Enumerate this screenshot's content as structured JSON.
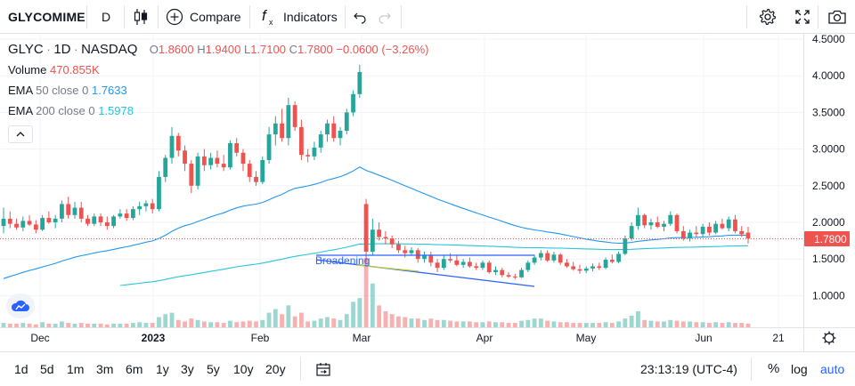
{
  "toolbar": {
    "symbol": "GLYCOMIME",
    "interval": "D",
    "compare_label": "Compare",
    "indicators_label": "Indicators"
  },
  "legend": {
    "symbol": "GLYC",
    "interval": "1D",
    "exchange": "NASDAQ",
    "o_label": "O",
    "o_value": "1.8600",
    "h_label": "H",
    "h_value": "1.9400",
    "l_label": "L",
    "l_value": "1.7100",
    "c_label": "C",
    "c_value": "1.7800",
    "change": "−0.0600 (−3.26%)",
    "volume_label": "Volume",
    "volume_value": "470.855K",
    "ema50_label": "EMA",
    "ema50_params": "50 close 0",
    "ema50_value": "1.7633",
    "ema200_label": "EMA",
    "ema200_params": "200 close 0",
    "ema200_value": "1.5978"
  },
  "drawing_label": "Broadening",
  "bottom": {
    "ranges": [
      "1d",
      "5d",
      "1m",
      "3m",
      "6m",
      "1y",
      "3y",
      "5y",
      "10y",
      "20y"
    ],
    "time": "23:13:19 (UTC-4)",
    "percent_label": "%",
    "log_label": "log",
    "auto_label": "auto"
  },
  "colors": {
    "up": "#26a69a",
    "down": "#ef5350",
    "ema50": "#2196f3",
    "ema200": "#26c6da",
    "accent": "#2962ff"
  },
  "chart_data": {
    "type": "candlestick",
    "price_ticks": [
      "4.5000",
      "4.0000",
      "3.5000",
      "3.0000",
      "2.5000",
      "2.0000",
      "1.5000",
      "1.0000"
    ],
    "ylim": [
      0.6,
      4.55
    ],
    "time_ticks": [
      "Dec",
      "2023",
      "Feb",
      "Mar",
      "Apr",
      "May",
      "Jun",
      "21"
    ],
    "last_price_label": "1.7800",
    "candles": [
      [
        1.95,
        2.2,
        1.85,
        2.05
      ],
      [
        2.05,
        2.15,
        1.92,
        1.98
      ],
      [
        1.98,
        2.05,
        1.9,
        1.93
      ],
      [
        1.93,
        2.08,
        1.88,
        2.02
      ],
      [
        2.02,
        2.1,
        1.95,
        1.97
      ],
      [
        1.97,
        2.03,
        1.85,
        1.9
      ],
      [
        1.9,
        2.1,
        1.88,
        2.06
      ],
      [
        2.06,
        2.15,
        1.98,
        2.0
      ],
      [
        2.0,
        2.1,
        1.92,
        2.05
      ],
      [
        2.05,
        2.3,
        2.0,
        2.25
      ],
      [
        2.25,
        2.35,
        2.05,
        2.1
      ],
      [
        2.1,
        2.28,
        2.05,
        2.2
      ],
      [
        2.2,
        2.28,
        2.0,
        2.05
      ],
      [
        2.05,
        2.1,
        1.95,
        1.98
      ],
      [
        1.98,
        2.12,
        1.95,
        2.08
      ],
      [
        2.08,
        2.12,
        1.95,
        2.0
      ],
      [
        2.0,
        2.08,
        1.9,
        1.95
      ],
      [
        1.95,
        2.1,
        1.92,
        2.08
      ],
      [
        2.08,
        2.18,
        2.05,
        2.12
      ],
      [
        2.12,
        2.18,
        2.02,
        2.06
      ],
      [
        2.06,
        2.22,
        2.03,
        2.18
      ],
      [
        2.18,
        2.28,
        2.1,
        2.22
      ],
      [
        2.22,
        2.3,
        2.15,
        2.26
      ],
      [
        2.26,
        2.32,
        2.12,
        2.18
      ],
      [
        2.18,
        2.7,
        2.15,
        2.62
      ],
      [
        2.62,
        2.92,
        2.55,
        2.88
      ],
      [
        2.88,
        3.3,
        2.8,
        3.18
      ],
      [
        3.18,
        3.22,
        2.9,
        2.98
      ],
      [
        2.98,
        3.05,
        2.7,
        2.8
      ],
      [
        2.8,
        2.85,
        2.4,
        2.5
      ],
      [
        2.5,
        2.95,
        2.45,
        2.9
      ],
      [
        2.9,
        3.0,
        2.7,
        2.78
      ],
      [
        2.78,
        2.95,
        2.72,
        2.88
      ],
      [
        2.88,
        2.98,
        2.75,
        2.8
      ],
      [
        2.8,
        2.92,
        2.7,
        2.75
      ],
      [
        2.75,
        3.12,
        2.72,
        3.08
      ],
      [
        3.08,
        3.15,
        2.9,
        2.95
      ],
      [
        2.95,
        3.0,
        2.7,
        2.8
      ],
      [
        2.8,
        2.85,
        2.55,
        2.62
      ],
      [
        2.62,
        2.7,
        2.5,
        2.55
      ],
      [
        2.55,
        2.9,
        2.52,
        2.85
      ],
      [
        2.85,
        3.3,
        2.8,
        3.2
      ],
      [
        3.2,
        3.45,
        3.05,
        3.35
      ],
      [
        3.35,
        3.55,
        3.1,
        3.15
      ],
      [
        3.15,
        3.7,
        3.05,
        3.6
      ],
      [
        3.6,
        3.65,
        3.25,
        3.3
      ],
      [
        3.3,
        3.4,
        2.85,
        2.92
      ],
      [
        2.92,
        3.0,
        2.82,
        2.9
      ],
      [
        2.9,
        3.1,
        2.85,
        3.02
      ],
      [
        3.02,
        3.25,
        2.95,
        3.2
      ],
      [
        3.2,
        3.4,
        3.1,
        3.35
      ],
      [
        3.35,
        3.45,
        3.1,
        3.15
      ],
      [
        3.15,
        3.3,
        3.05,
        3.25
      ],
      [
        3.25,
        3.55,
        3.2,
        3.5
      ],
      [
        3.5,
        3.8,
        3.45,
        3.75
      ],
      [
        3.75,
        4.15,
        3.7,
        4.05
      ],
      [
        2.25,
        2.32,
        1.45,
        1.6
      ],
      [
        1.6,
        2.05,
        1.55,
        1.9
      ],
      [
        1.9,
        2.0,
        1.75,
        1.8
      ],
      [
        1.8,
        1.88,
        1.7,
        1.78
      ],
      [
        1.78,
        1.82,
        1.65,
        1.7
      ],
      [
        1.7,
        1.75,
        1.58,
        1.62
      ],
      [
        1.62,
        1.68,
        1.52,
        1.58
      ],
      [
        1.58,
        1.66,
        1.55,
        1.62
      ],
      [
        1.62,
        1.65,
        1.45,
        1.5
      ],
      [
        1.5,
        1.6,
        1.45,
        1.55
      ],
      [
        1.55,
        1.6,
        1.4,
        1.45
      ],
      [
        1.45,
        1.5,
        1.32,
        1.38
      ],
      [
        1.38,
        1.55,
        1.35,
        1.5
      ],
      [
        1.5,
        1.58,
        1.45,
        1.48
      ],
      [
        1.48,
        1.55,
        1.4,
        1.42
      ],
      [
        1.42,
        1.5,
        1.38,
        1.46
      ],
      [
        1.46,
        1.52,
        1.38,
        1.4
      ],
      [
        1.4,
        1.45,
        1.35,
        1.38
      ],
      [
        1.38,
        1.48,
        1.35,
        1.45
      ],
      [
        1.45,
        1.48,
        1.3,
        1.32
      ],
      [
        1.32,
        1.4,
        1.28,
        1.35
      ],
      [
        1.35,
        1.38,
        1.25,
        1.28
      ],
      [
        1.28,
        1.32,
        1.24,
        1.26
      ],
      [
        1.26,
        1.3,
        1.22,
        1.25
      ],
      [
        1.25,
        1.38,
        1.24,
        1.35
      ],
      [
        1.35,
        1.48,
        1.32,
        1.45
      ],
      [
        1.45,
        1.56,
        1.42,
        1.52
      ],
      [
        1.52,
        1.62,
        1.48,
        1.58
      ],
      [
        1.58,
        1.62,
        1.46,
        1.48
      ],
      [
        1.48,
        1.6,
        1.45,
        1.56
      ],
      [
        1.56,
        1.58,
        1.42,
        1.45
      ],
      [
        1.45,
        1.5,
        1.38,
        1.4
      ],
      [
        1.4,
        1.46,
        1.34,
        1.36
      ],
      [
        1.36,
        1.42,
        1.3,
        1.34
      ],
      [
        1.34,
        1.4,
        1.31,
        1.37
      ],
      [
        1.37,
        1.44,
        1.33,
        1.4
      ],
      [
        1.4,
        1.45,
        1.35,
        1.38
      ],
      [
        1.38,
        1.52,
        1.36,
        1.49
      ],
      [
        1.49,
        1.56,
        1.44,
        1.46
      ],
      [
        1.46,
        1.6,
        1.44,
        1.57
      ],
      [
        1.57,
        1.82,
        1.55,
        1.78
      ],
      [
        1.78,
        2.0,
        1.75,
        1.95
      ],
      [
        1.95,
        2.2,
        1.9,
        2.1
      ],
      [
        2.1,
        2.12,
        1.92,
        1.96
      ],
      [
        1.96,
        2.05,
        1.9,
        2.0
      ],
      [
        2.0,
        2.08,
        1.92,
        1.94
      ],
      [
        1.94,
        2.02,
        1.88,
        1.98
      ],
      [
        1.98,
        2.15,
        1.95,
        2.1
      ],
      [
        2.1,
        2.12,
        1.85,
        1.88
      ],
      [
        1.88,
        1.95,
        1.75,
        1.78
      ],
      [
        1.78,
        1.9,
        1.74,
        1.86
      ],
      [
        1.86,
        1.95,
        1.8,
        1.84
      ],
      [
        1.84,
        1.98,
        1.8,
        1.94
      ],
      [
        1.94,
        2.0,
        1.82,
        1.86
      ],
      [
        1.86,
        2.02,
        1.84,
        1.98
      ],
      [
        1.98,
        2.05,
        1.9,
        1.92
      ],
      [
        1.92,
        2.08,
        1.88,
        2.04
      ],
      [
        2.04,
        2.1,
        1.85,
        1.88
      ],
      [
        1.88,
        1.95,
        1.8,
        1.84
      ],
      [
        1.86,
        1.94,
        1.71,
        1.78
      ]
    ],
    "volumes": [
      6,
      5,
      5,
      6,
      5,
      4,
      7,
      5,
      5,
      8,
      6,
      5,
      6,
      5,
      5,
      5,
      4,
      5,
      5,
      5,
      6,
      7,
      6,
      6,
      14,
      18,
      20,
      10,
      8,
      12,
      10,
      8,
      7,
      7,
      6,
      9,
      7,
      8,
      9,
      8,
      10,
      20,
      25,
      18,
      30,
      15,
      20,
      8,
      9,
      12,
      14,
      12,
      10,
      18,
      35,
      40,
      95,
      60,
      30,
      22,
      18,
      15,
      14,
      12,
      12,
      10,
      12,
      10,
      10,
      9,
      8,
      8,
      8,
      7,
      7,
      8,
      7,
      7,
      6,
      6,
      9,
      10,
      12,
      12,
      9,
      8,
      7,
      7,
      6,
      6,
      6,
      6,
      6,
      7,
      6,
      8,
      12,
      16,
      22,
      10,
      9,
      8,
      8,
      10,
      9,
      8,
      8,
      7,
      7,
      6,
      7,
      6,
      7,
      6,
      6,
      5
    ]
  }
}
